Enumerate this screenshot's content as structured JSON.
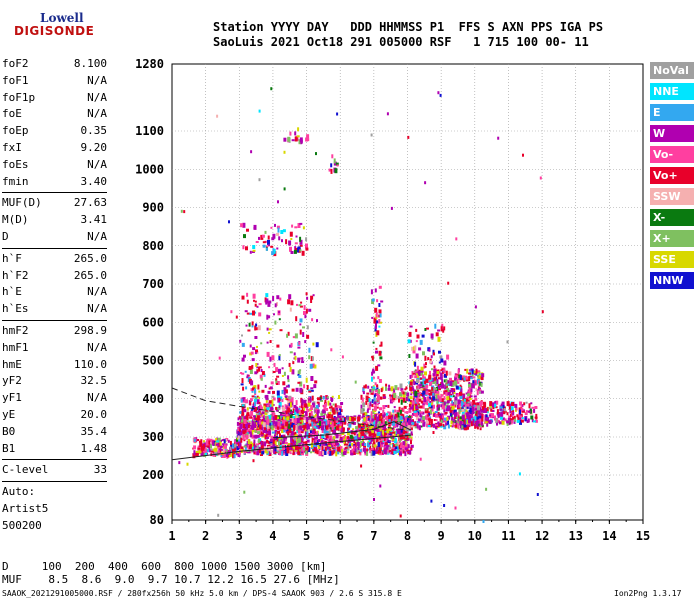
{
  "logo": {
    "brand": "Lowell",
    "product": "DIGISONDE"
  },
  "header": {
    "line1": "Station YYYY DAY   DDD HHMMSS P1  FFS S AXN PPS IGA PS",
    "line2": "SaoLuis 2021 Oct18 291 005000 RSF   1 715 100 00- 11"
  },
  "params": {
    "group1": [
      {
        "k": "foF2",
        "v": "8.100"
      },
      {
        "k": "foF1",
        "v": "N/A"
      },
      {
        "k": "foF1p",
        "v": "N/A"
      },
      {
        "k": "foE",
        "v": "N/A"
      },
      {
        "k": "foEp",
        "v": "0.35"
      },
      {
        "k": "fxI",
        "v": "9.20"
      },
      {
        "k": "foEs",
        "v": "N/A"
      },
      {
        "k": "fmin",
        "v": "3.40"
      }
    ],
    "group2": [
      {
        "k": "MUF(D)",
        "v": "27.63"
      },
      {
        "k": "M(D)",
        "v": "3.41"
      },
      {
        "k": "D",
        "v": "N/A"
      }
    ],
    "group3": [
      {
        "k": "h`F",
        "v": "265.0"
      },
      {
        "k": "h`F2",
        "v": "265.0"
      },
      {
        "k": "h`E",
        "v": "N/A"
      },
      {
        "k": "h`Es",
        "v": "N/A"
      }
    ],
    "group4": [
      {
        "k": "hmF2",
        "v": "298.9"
      },
      {
        "k": "hmF1",
        "v": "N/A"
      },
      {
        "k": "hmE",
        "v": "110.0"
      },
      {
        "k": "yF2",
        "v": "32.5"
      },
      {
        "k": "yF1",
        "v": "N/A"
      },
      {
        "k": "yE",
        "v": "20.0"
      },
      {
        "k": "B0",
        "v": "35.4"
      },
      {
        "k": "B1",
        "v": "1.48"
      }
    ],
    "group5": [
      {
        "k": "C-level",
        "v": "33"
      }
    ],
    "group6": [
      {
        "k": "Auto:",
        "v": ""
      },
      {
        "k": "Artist5",
        "v": ""
      },
      {
        "k": "500200",
        "v": ""
      }
    ]
  },
  "legend": [
    {
      "label": "NoVal",
      "color": "#a0a0a0"
    },
    {
      "label": "NNE",
      "color": "#00e5ff"
    },
    {
      "label": "E",
      "color": "#33a8f0"
    },
    {
      "label": "W",
      "color": "#b000b0"
    },
    {
      "label": "Vo-",
      "color": "#ff3fa0"
    },
    {
      "label": "Vo+",
      "color": "#e8002a"
    },
    {
      "label": "SSW",
      "color": "#f5b0b0"
    },
    {
      "label": "X-",
      "color": "#0a7a10"
    },
    {
      "label": "X+",
      "color": "#7fc060"
    },
    {
      "label": "SSE",
      "color": "#d8d800"
    },
    {
      "label": "NNW",
      "color": "#1010d0"
    }
  ],
  "chart_data": {
    "type": "scatter",
    "title": "",
    "xlabel": "",
    "ylabel": "",
    "xlim": [
      1,
      15
    ],
    "ylim": [
      80,
      1280
    ],
    "y_scale": "ionogram",
    "x_ticks": [
      "1",
      "2",
      "3",
      "4",
      "5",
      "6",
      "7",
      "8",
      "9",
      "10",
      "11",
      "12",
      "13",
      "14",
      "15"
    ],
    "y_ticks": [
      "80",
      "200",
      "300",
      "400",
      "500",
      "600",
      "700",
      "800",
      "900",
      "1000",
      "1100",
      "1280"
    ],
    "grid": true,
    "trace_lines": [
      {
        "name": "profile",
        "x": [
          1.0,
          3.0,
          5.0,
          6.5,
          7.5,
          8.1
        ],
        "y": [
          240,
          262,
          280,
          292,
          300,
          305
        ]
      },
      {
        "name": "profile-upper",
        "x": [
          4.0,
          5.5,
          7.0,
          7.6,
          8.1
        ],
        "y": [
          298,
          305,
          320,
          340,
          318
        ]
      },
      {
        "name": "dashed",
        "x": [
          1.0,
          2.0,
          3.0,
          4.5,
          6.5,
          8.0
        ],
        "y": [
          428,
          395,
          380,
          360,
          335,
          318
        ]
      }
    ],
    "clusters": [
      {
        "x": [
          1.6,
          3.0
        ],
        "y": [
          255,
          300
        ],
        "n": 180
      },
      {
        "x": [
          2.9,
          8.1
        ],
        "y": [
          262,
          360
        ],
        "n": 1300
      },
      {
        "x": [
          3.0,
          6.0
        ],
        "y": [
          330,
          410
        ],
        "n": 500
      },
      {
        "x": [
          6.6,
          8.0
        ],
        "y": [
          300,
          440
        ],
        "n": 300
      },
      {
        "x": [
          8.0,
          10.2
        ],
        "y": [
          330,
          480
        ],
        "n": 700
      },
      {
        "x": [
          9.5,
          11.8
        ],
        "y": [
          340,
          395
        ],
        "n": 220
      },
      {
        "x": [
          3.0,
          5.3
        ],
        "y": [
          420,
          680
        ],
        "n": 220
      },
      {
        "x": [
          6.9,
          7.2
        ],
        "y": [
          300,
          700
        ],
        "n": 90
      },
      {
        "x": [
          8.0,
          9.2
        ],
        "y": [
          400,
          600
        ],
        "n": 120
      },
      {
        "x": [
          3.0,
          5.0
        ],
        "y": [
          785,
          860
        ],
        "n": 70
      },
      {
        "x": [
          4.3,
          5.0
        ],
        "y": [
          1075,
          1110
        ],
        "n": 18
      },
      {
        "x": [
          5.6,
          5.9
        ],
        "y": [
          1000,
          1040
        ],
        "n": 10
      }
    ]
  },
  "footer": {
    "d_row": "D     100  200  400  600  800 1000 1500 3000 [km]",
    "muf_row": "MUF    8.5  8.6  9.0  9.7 10.7 12.2 16.5 27.6 [MHz]",
    "file_info": "SAAOK_2021291005000.RSF / 280fx256h 50 kHz 5.0 km / DPS-4 SAAOK 903 / 2.6 S 315.8 E",
    "version": "Ion2Png 1.3.17"
  }
}
